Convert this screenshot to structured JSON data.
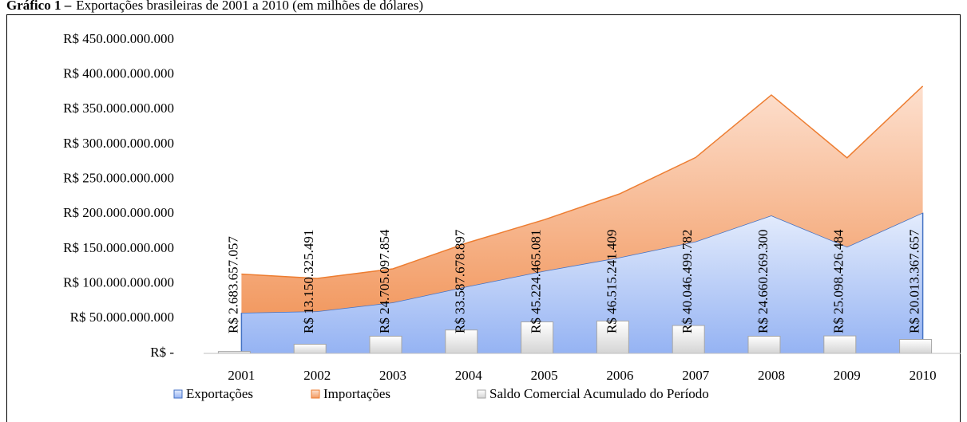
{
  "chart_data": {
    "type": "area",
    "figure_label": "Gráfico 1 –",
    "title": "Exportações brasileiras de 2001 a 2010 (em milhões de dólares)",
    "categories": [
      "2001",
      "2002",
      "2003",
      "2004",
      "2005",
      "2006",
      "2007",
      "2008",
      "2009",
      "2010"
    ],
    "stacked": true,
    "series": [
      {
        "name": "Exportações",
        "type": "area",
        "color": "#4472c4",
        "values": [
          58200000000,
          60400000000,
          73100000000,
          96500000000,
          118300000000,
          137800000000,
          160600000000,
          197900000000,
          153000000000,
          201900000000
        ]
      },
      {
        "name": "Importações",
        "type": "area",
        "color": "#ed7d31",
        "values": [
          55600000000,
          47200000000,
          48300000000,
          62800000000,
          73600000000,
          91400000000,
          120600000000,
          173000000000,
          127700000000,
          181800000000
        ]
      },
      {
        "name": "Saldo Comercial Acumulado do Período",
        "type": "bar",
        "color": "#d9d9d9",
        "values": [
          2683657057,
          13150325491,
          24705097854,
          33587678897,
          45224465081,
          46515241409,
          40046499782,
          24660269300,
          25098426484,
          20013367657
        ],
        "value_labels": [
          "R$ 2.683.657.057",
          "R$ 13.150.325.491",
          "R$ 24.705.097.854",
          "R$ 33.587.678.897",
          "R$ 45.224.465.081",
          "R$ 46.515.241.409",
          "R$ 40.046.499.782",
          "R$ 24.660.269.300",
          "R$ 25.098.426.484",
          "R$ 20.013.367.657"
        ]
      }
    ],
    "ylim": [
      0,
      450000000000
    ],
    "yticks": [
      {
        "value": 0,
        "label": "R$ -"
      },
      {
        "value": 50000000000,
        "label": "R$ 50.000.000.000"
      },
      {
        "value": 100000000000,
        "label": "R$ 100.000.000.000"
      },
      {
        "value": 150000000000,
        "label": "R$ 150.000.000.000"
      },
      {
        "value": 200000000000,
        "label": "R$ 200.000.000.000"
      },
      {
        "value": 250000000000,
        "label": "R$ 250.000.000.000"
      },
      {
        "value": 300000000000,
        "label": "R$ 300.000.000.000"
      },
      {
        "value": 350000000000,
        "label": "R$ 350.000.000.000"
      },
      {
        "value": 400000000000,
        "label": "R$ 400.000.000.000"
      },
      {
        "value": 450000000000,
        "label": "R$ 450.000.000.000"
      }
    ],
    "grid": false,
    "legend": "bottom"
  }
}
